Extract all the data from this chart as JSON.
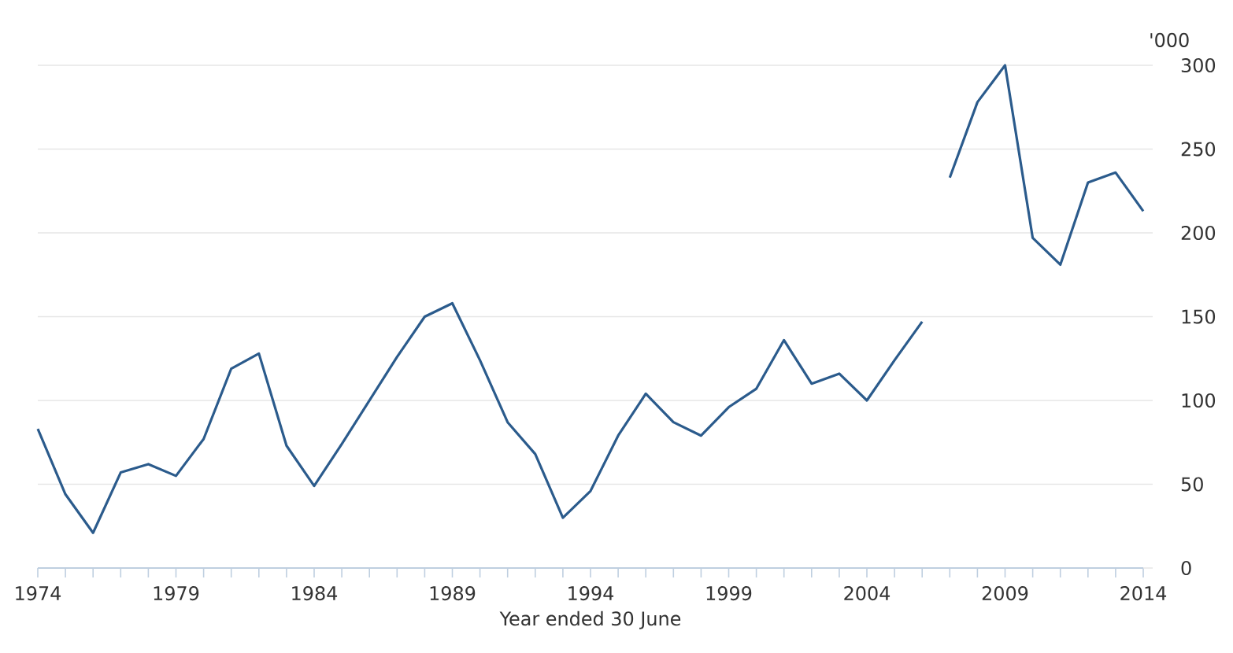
{
  "chart_data": {
    "type": "line",
    "xlabel": "Year ended 30 June",
    "ylabel": "'000",
    "series": [
      {
        "color": "#2b5b8c",
        "x": [
          1974,
          1975,
          1976,
          1977,
          1978,
          1979,
          1980,
          1981,
          1982,
          1983,
          1984,
          1985,
          1986,
          1987,
          1988,
          1989,
          1990,
          1991,
          1992,
          1993,
          1994,
          1995,
          1996,
          1997,
          1998,
          1999,
          2000,
          2001,
          2002,
          2003,
          2004,
          2005,
          2006
        ],
        "values": [
          83,
          44,
          21,
          57,
          62,
          55,
          77,
          119,
          128,
          73,
          49,
          74,
          100,
          126,
          150,
          158,
          124,
          87,
          68,
          30,
          46,
          79,
          104,
          87,
          79,
          96,
          107,
          136,
          110,
          116,
          100,
          124,
          147
        ]
      },
      {
        "color": "#2b5b8c",
        "x": [
          2007,
          2008,
          2009,
          2010,
          2011,
          2012,
          2013,
          2014
        ],
        "values": [
          233,
          278,
          300,
          197,
          181,
          230,
          236,
          213
        ]
      }
    ],
    "xlim": [
      1974,
      2014
    ],
    "xticks": [
      1974,
      {
        "value": 1975,
        "label": null
      },
      {
        "value": 1976,
        "label": null
      },
      {
        "value": 1977,
        "label": null
      },
      {
        "value": 1978,
        "label": null
      },
      1979,
      {
        "value": 1980,
        "label": null
      },
      {
        "value": 1981,
        "label": null
      },
      {
        "value": 1982,
        "label": null
      },
      {
        "value": 1983,
        "label": null
      },
      1984,
      {
        "value": 1985,
        "label": null
      },
      {
        "value": 1986,
        "label": null
      },
      {
        "value": 1987,
        "label": null
      },
      {
        "value": 1988,
        "label": null
      },
      1989,
      {
        "value": 1990,
        "label": null
      },
      {
        "value": 1991,
        "label": null
      },
      {
        "value": 1992,
        "label": null
      },
      {
        "value": 1993,
        "label": null
      },
      1994,
      {
        "value": 1995,
        "label": null
      },
      {
        "value": 1996,
        "label": null
      },
      {
        "value": 1997,
        "label": null
      },
      {
        "value": 1998,
        "label": null
      },
      1999,
      {
        "value": 2000,
        "label": null
      },
      {
        "value": 2001,
        "label": null
      },
      {
        "value": 2002,
        "label": null
      },
      {
        "value": 2003,
        "label": null
      },
      2004,
      {
        "value": 2005,
        "label": null
      },
      {
        "value": 2006,
        "label": null
      },
      {
        "value": 2007,
        "label": null
      },
      {
        "value": 2008,
        "label": null
      },
      2009,
      {
        "value": 2010,
        "label": null
      },
      {
        "value": 2011,
        "label": null
      },
      {
        "value": 2012,
        "label": null
      },
      {
        "value": 2013,
        "label": null
      },
      2014
    ],
    "ylim": [
      0,
      300
    ],
    "yticks": [
      0,
      50,
      100,
      150,
      200,
      250,
      300
    ],
    "grid": "y",
    "marker": "none",
    "line_style": "solid"
  }
}
